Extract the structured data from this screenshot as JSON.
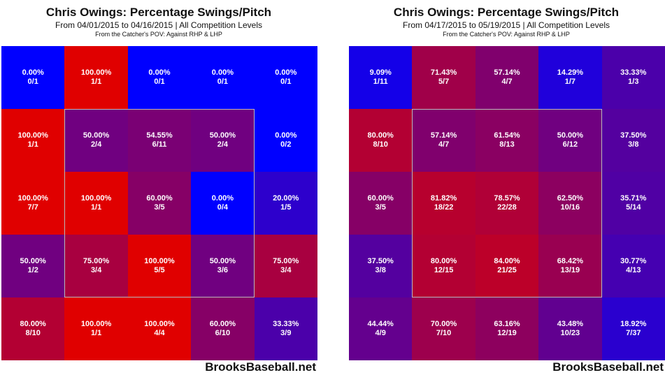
{
  "chart_data": [
    {
      "type": "heatmap",
      "title": "Chris Owings: Percentage Swings/Pitch",
      "subtitle": "From 04/01/2015 to 04/16/2015 | All Competition Levels",
      "note": "From the Catcher's POV:   Against RHP & LHP",
      "credit": "BrooksBaseball.net",
      "rows": 5,
      "cols": 5,
      "cells": [
        [
          {
            "pct": "0.00%",
            "count": "0/1",
            "value": 0.0
          },
          {
            "pct": "100.00%",
            "count": "1/1",
            "value": 100.0
          },
          {
            "pct": "0.00%",
            "count": "0/1",
            "value": 0.0
          },
          {
            "pct": "0.00%",
            "count": "0/1",
            "value": 0.0
          },
          {
            "pct": "0.00%",
            "count": "0/1",
            "value": 0.0
          }
        ],
        [
          {
            "pct": "100.00%",
            "count": "1/1",
            "value": 100.0
          },
          {
            "pct": "50.00%",
            "count": "2/4",
            "value": 50.0
          },
          {
            "pct": "54.55%",
            "count": "6/11",
            "value": 54.55
          },
          {
            "pct": "50.00%",
            "count": "2/4",
            "value": 50.0
          },
          {
            "pct": "0.00%",
            "count": "0/2",
            "value": 0.0
          }
        ],
        [
          {
            "pct": "100.00%",
            "count": "7/7",
            "value": 100.0
          },
          {
            "pct": "100.00%",
            "count": "1/1",
            "value": 100.0
          },
          {
            "pct": "60.00%",
            "count": "3/5",
            "value": 60.0
          },
          {
            "pct": "0.00%",
            "count": "0/4",
            "value": 0.0
          },
          {
            "pct": "20.00%",
            "count": "1/5",
            "value": 20.0
          }
        ],
        [
          {
            "pct": "50.00%",
            "count": "1/2",
            "value": 50.0
          },
          {
            "pct": "75.00%",
            "count": "3/4",
            "value": 75.0
          },
          {
            "pct": "100.00%",
            "count": "5/5",
            "value": 100.0
          },
          {
            "pct": "50.00%",
            "count": "3/6",
            "value": 50.0
          },
          {
            "pct": "75.00%",
            "count": "3/4",
            "value": 75.0
          }
        ],
        [
          {
            "pct": "80.00%",
            "count": "8/10",
            "value": 80.0
          },
          {
            "pct": "100.00%",
            "count": "1/1",
            "value": 100.0
          },
          {
            "pct": "100.00%",
            "count": "4/4",
            "value": 100.0
          },
          {
            "pct": "60.00%",
            "count": "6/10",
            "value": 60.0
          },
          {
            "pct": "33.33%",
            "count": "3/9",
            "value": 33.33
          }
        ]
      ]
    },
    {
      "type": "heatmap",
      "title": "Chris Owings: Percentage Swings/Pitch",
      "subtitle": "From 04/17/2015 to 05/19/2015 | All Competition Levels",
      "note": "From the Catcher's POV:   Against RHP & LHP",
      "credit": "BrooksBaseball.net",
      "rows": 5,
      "cols": 5,
      "cells": [
        [
          {
            "pct": "9.09%",
            "count": "1/11",
            "value": 9.09
          },
          {
            "pct": "71.43%",
            "count": "5/7",
            "value": 71.43
          },
          {
            "pct": "57.14%",
            "count": "4/7",
            "value": 57.14
          },
          {
            "pct": "14.29%",
            "count": "1/7",
            "value": 14.29
          },
          {
            "pct": "33.33%",
            "count": "1/3",
            "value": 33.33
          }
        ],
        [
          {
            "pct": "80.00%",
            "count": "8/10",
            "value": 80.0
          },
          {
            "pct": "57.14%",
            "count": "4/7",
            "value": 57.14
          },
          {
            "pct": "61.54%",
            "count": "8/13",
            "value": 61.54
          },
          {
            "pct": "50.00%",
            "count": "6/12",
            "value": 50.0
          },
          {
            "pct": "37.50%",
            "count": "3/8",
            "value": 37.5
          }
        ],
        [
          {
            "pct": "60.00%",
            "count": "3/5",
            "value": 60.0
          },
          {
            "pct": "81.82%",
            "count": "18/22",
            "value": 81.82
          },
          {
            "pct": "78.57%",
            "count": "22/28",
            "value": 78.57
          },
          {
            "pct": "62.50%",
            "count": "10/16",
            "value": 62.5
          },
          {
            "pct": "35.71%",
            "count": "5/14",
            "value": 35.71
          }
        ],
        [
          {
            "pct": "37.50%",
            "count": "3/8",
            "value": 37.5
          },
          {
            "pct": "80.00%",
            "count": "12/15",
            "value": 80.0
          },
          {
            "pct": "84.00%",
            "count": "21/25",
            "value": 84.0
          },
          {
            "pct": "68.42%",
            "count": "13/19",
            "value": 68.42
          },
          {
            "pct": "30.77%",
            "count": "4/13",
            "value": 30.77
          }
        ],
        [
          {
            "pct": "44.44%",
            "count": "4/9",
            "value": 44.44
          },
          {
            "pct": "70.00%",
            "count": "7/10",
            "value": 70.0
          },
          {
            "pct": "63.16%",
            "count": "12/19",
            "value": 63.16
          },
          {
            "pct": "43.48%",
            "count": "10/23",
            "value": 43.48
          },
          {
            "pct": "18.92%",
            "count": "7/37",
            "value": 18.92
          }
        ]
      ]
    }
  ],
  "colors": {
    "low": "#0000ff",
    "high": "#e00000",
    "zone_border": "#b9b9b9",
    "cell_text": "#ffffff"
  }
}
